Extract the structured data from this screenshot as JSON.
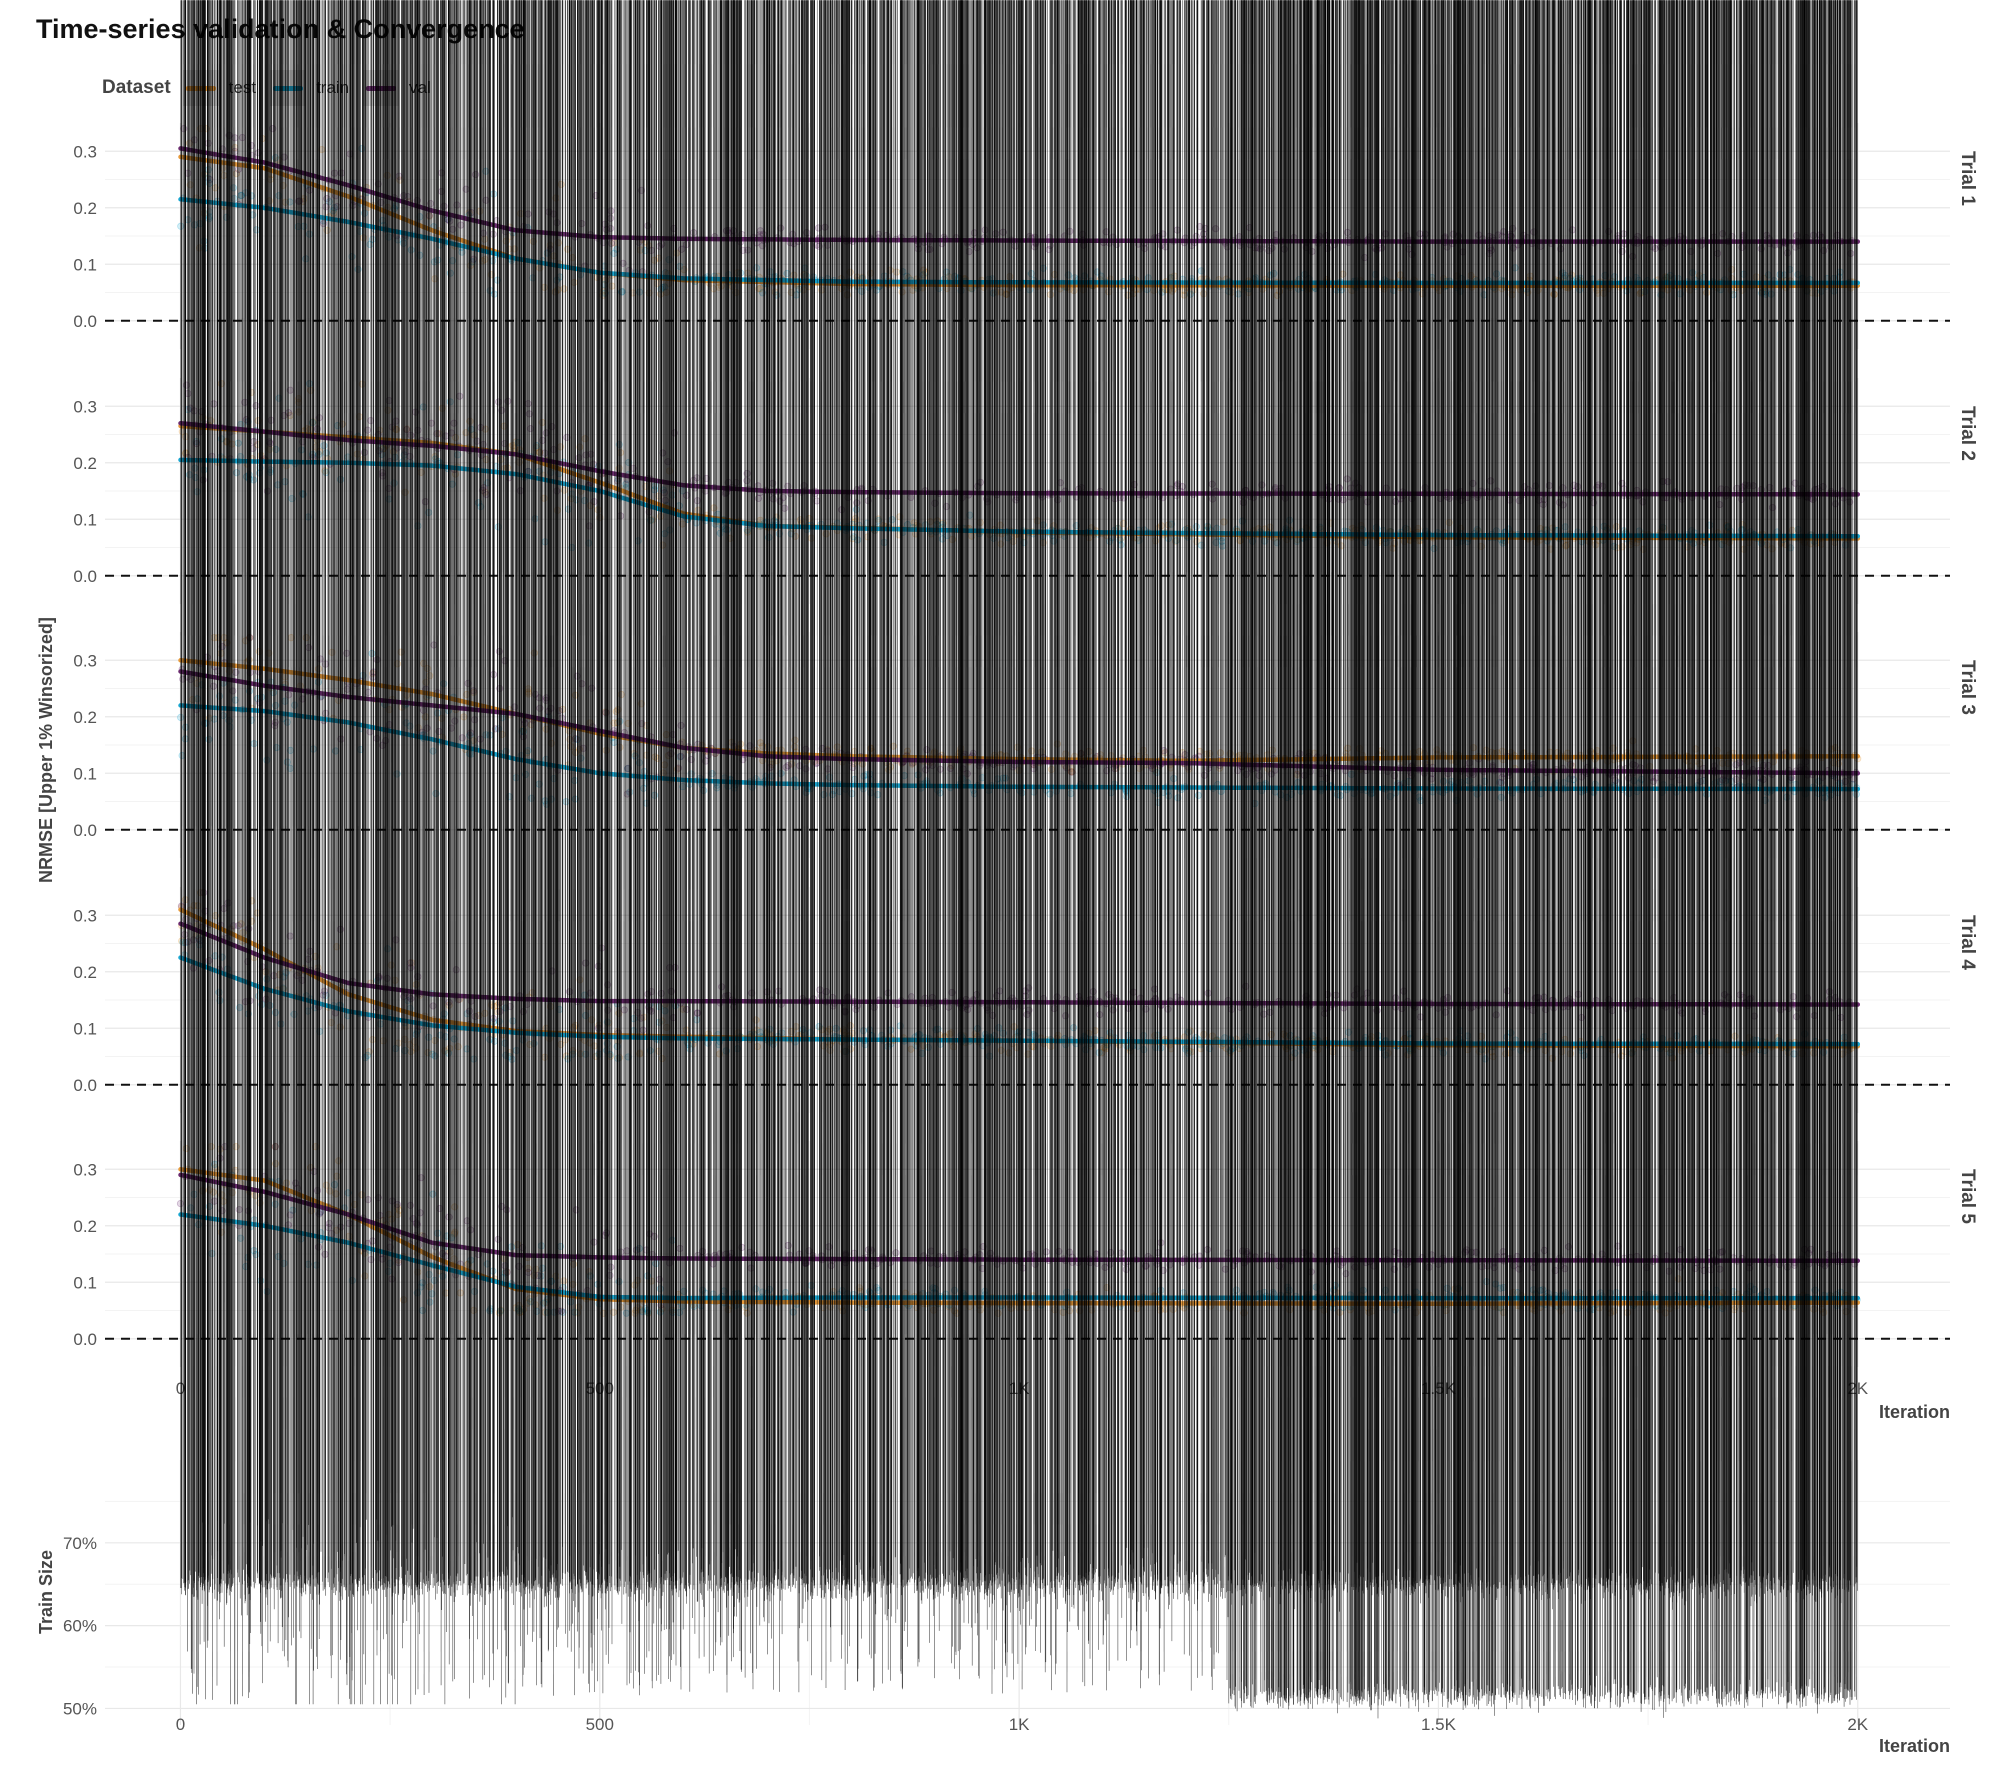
{
  "title": "Time-series validation & Convergence",
  "legend": {
    "title": "Dataset",
    "items": [
      {
        "label": "test",
        "color": "#e69a3c"
      },
      {
        "label": "train",
        "color": "#1aa6d0"
      },
      {
        "label": "val",
        "color": "#6b2c6f"
      }
    ]
  },
  "chart_data": [
    {
      "type": "line",
      "description_type": "faceted scatter with smoothed trend lines",
      "ylabel": "NRMSE [Upper 1% Winsorized]",
      "xlabel": "Iteration",
      "xlim": [
        -90,
        2110
      ],
      "ylim": [
        -0.05,
        0.35
      ],
      "x_ticks": [
        0,
        500,
        1000,
        1500,
        2000
      ],
      "x_tick_labels": [
        "0",
        "500",
        "1K",
        "1.5K",
        "2K"
      ],
      "y_ticks": [
        0.0,
        0.1,
        0.2,
        0.3
      ],
      "y_tick_labels": [
        "0.0",
        "0.1",
        "0.2",
        "0.3"
      ],
      "reference_line": {
        "y": 0.0,
        "style": "dashed"
      },
      "grid": true,
      "facets": [
        {
          "label": "Trial 1",
          "series": [
            {
              "name": "test",
              "x": [
                0,
                100,
                200,
                300,
                400,
                500,
                600,
                800,
                1000,
                1500,
                2000
              ],
              "y": [
                0.29,
                0.27,
                0.22,
                0.16,
                0.11,
                0.085,
                0.072,
                0.065,
                0.063,
                0.062,
                0.062
              ]
            },
            {
              "name": "train",
              "x": [
                0,
                100,
                200,
                300,
                400,
                500,
                600,
                800,
                1000,
                1500,
                2000
              ],
              "y": [
                0.215,
                0.2,
                0.175,
                0.145,
                0.11,
                0.085,
                0.075,
                0.069,
                0.068,
                0.067,
                0.067
              ]
            },
            {
              "name": "val",
              "x": [
                0,
                100,
                200,
                300,
                400,
                500,
                600,
                800,
                1000,
                1500,
                2000
              ],
              "y": [
                0.305,
                0.28,
                0.24,
                0.195,
                0.16,
                0.148,
                0.145,
                0.143,
                0.142,
                0.14,
                0.14
              ]
            }
          ]
        },
        {
          "label": "Trial 2",
          "series": [
            {
              "name": "test",
              "x": [
                0,
                100,
                200,
                300,
                400,
                500,
                600,
                700,
                800,
                1000,
                1500,
                2000
              ],
              "y": [
                0.265,
                0.255,
                0.245,
                0.235,
                0.215,
                0.165,
                0.11,
                0.088,
                0.085,
                0.077,
                0.068,
                0.066
              ]
            },
            {
              "name": "train",
              "x": [
                0,
                100,
                200,
                300,
                400,
                500,
                600,
                700,
                800,
                1000,
                1500,
                2000
              ],
              "y": [
                0.205,
                0.202,
                0.2,
                0.195,
                0.18,
                0.15,
                0.105,
                0.088,
                0.084,
                0.078,
                0.072,
                0.07
              ]
            },
            {
              "name": "val",
              "x": [
                0,
                100,
                200,
                300,
                400,
                500,
                600,
                700,
                800,
                1000,
                1500,
                2000
              ],
              "y": [
                0.27,
                0.255,
                0.24,
                0.23,
                0.215,
                0.185,
                0.16,
                0.15,
                0.148,
                0.146,
                0.145,
                0.144
              ]
            }
          ]
        },
        {
          "label": "Trial 3",
          "series": [
            {
              "name": "test",
              "x": [
                0,
                100,
                200,
                300,
                400,
                500,
                600,
                700,
                800,
                1000,
                1200,
                1500,
                2000
              ],
              "y": [
                0.3,
                0.285,
                0.265,
                0.24,
                0.205,
                0.17,
                0.145,
                0.135,
                0.13,
                0.125,
                0.122,
                0.128,
                0.13
              ]
            },
            {
              "name": "train",
              "x": [
                0,
                100,
                200,
                300,
                400,
                500,
                600,
                700,
                800,
                1000,
                1500,
                2000
              ],
              "y": [
                0.22,
                0.21,
                0.19,
                0.16,
                0.125,
                0.1,
                0.088,
                0.082,
                0.079,
                0.076,
                0.073,
                0.072
              ]
            },
            {
              "name": "val",
              "x": [
                0,
                100,
                200,
                300,
                400,
                500,
                600,
                700,
                800,
                1000,
                1200,
                1500,
                2000
              ],
              "y": [
                0.28,
                0.255,
                0.235,
                0.22,
                0.205,
                0.175,
                0.145,
                0.13,
                0.125,
                0.12,
                0.118,
                0.106,
                0.1
              ]
            }
          ]
        },
        {
          "label": "Trial 4",
          "series": [
            {
              "name": "test",
              "x": [
                0,
                100,
                200,
                300,
                400,
                500,
                600,
                800,
                1000,
                1500,
                2000
              ],
              "y": [
                0.31,
                0.24,
                0.16,
                0.115,
                0.095,
                0.088,
                0.085,
                0.08,
                0.078,
                0.07,
                0.068
              ]
            },
            {
              "name": "train",
              "x": [
                0,
                100,
                200,
                300,
                400,
                500,
                600,
                800,
                1000,
                1500,
                2000
              ],
              "y": [
                0.225,
                0.17,
                0.13,
                0.105,
                0.092,
                0.085,
                0.082,
                0.08,
                0.078,
                0.073,
                0.072
              ]
            },
            {
              "name": "val",
              "x": [
                0,
                100,
                200,
                300,
                400,
                500,
                600,
                800,
                1000,
                1500,
                2000
              ],
              "y": [
                0.285,
                0.225,
                0.18,
                0.16,
                0.152,
                0.148,
                0.148,
                0.147,
                0.146,
                0.143,
                0.142
              ]
            }
          ]
        },
        {
          "label": "Trial 5",
          "series": [
            {
              "name": "test",
              "x": [
                0,
                100,
                200,
                300,
                400,
                500,
                600,
                800,
                1000,
                1500,
                2000
              ],
              "y": [
                0.3,
                0.28,
                0.22,
                0.145,
                0.088,
                0.07,
                0.066,
                0.064,
                0.063,
                0.062,
                0.064
              ]
            },
            {
              "name": "train",
              "x": [
                0,
                100,
                200,
                300,
                400,
                500,
                600,
                800,
                1000,
                1500,
                2000
              ],
              "y": [
                0.22,
                0.2,
                0.17,
                0.13,
                0.092,
                0.074,
                0.072,
                0.073,
                0.073,
                0.072,
                0.072
              ]
            },
            {
              "name": "val",
              "x": [
                0,
                100,
                200,
                300,
                400,
                500,
                600,
                800,
                1000,
                1500,
                2000
              ],
              "y": [
                0.29,
                0.26,
                0.22,
                0.17,
                0.148,
                0.144,
                0.142,
                0.141,
                0.14,
                0.139,
                0.138
              ]
            }
          ]
        }
      ]
    },
    {
      "type": "scatter",
      "ylabel": "Train Size",
      "xlabel": "Iteration",
      "xlim": [
        -90,
        2110
      ],
      "ylim": [
        48,
        80
      ],
      "x_ticks": [
        0,
        500,
        1000,
        1500,
        2000
      ],
      "x_tick_labels": [
        "0",
        "500",
        "1K",
        "1.5K",
        "2K"
      ],
      "y_ticks": [
        50,
        60,
        70
      ],
      "y_tick_labels": [
        "50%",
        "60%",
        "70%"
      ],
      "grid": true,
      "marker": "diamond",
      "color": "#000000",
      "clusters": [
        {
          "x_range": [
            0,
            2000
          ],
          "center": 64.5,
          "spread": 1.0,
          "density": "dense band"
        },
        {
          "x_range": [
            0,
            1250
          ],
          "center": 60,
          "spread": 9,
          "density": "scattered"
        },
        {
          "x_range": [
            1250,
            2000
          ],
          "center": 51,
          "spread": 0.8,
          "density": "dense band"
        }
      ]
    }
  ]
}
